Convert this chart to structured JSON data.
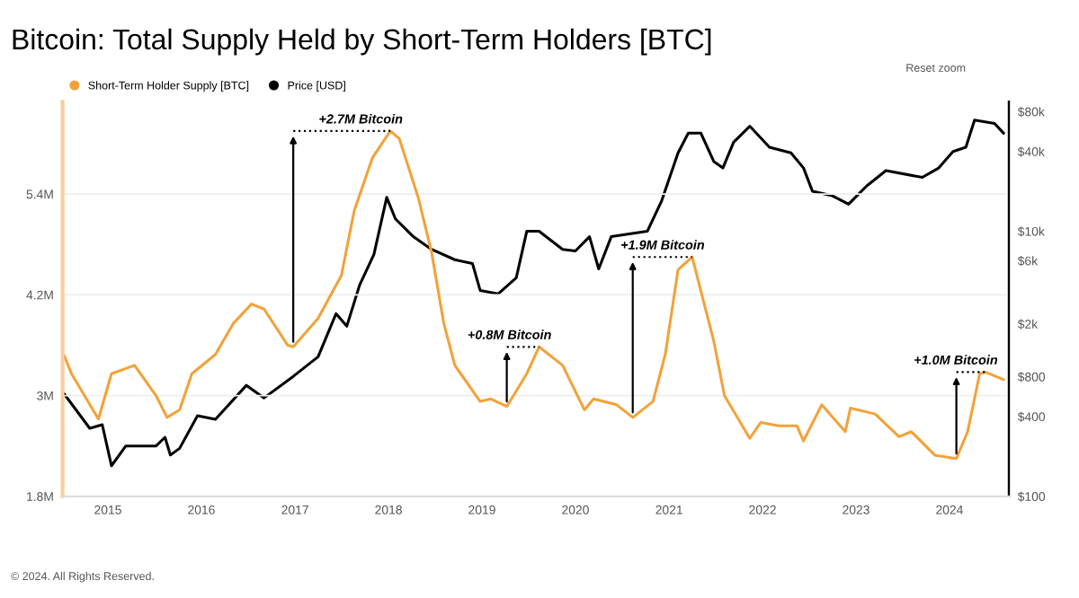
{
  "chart_data": {
    "type": "line",
    "title": "Bitcoin: Total Supply Held by Short-Term Holders [BTC]",
    "series": [
      {
        "name": "Short-Term Holder Supply [BTC]",
        "color": "#f2a23a",
        "axis": "y",
        "x": [
          "2014-07-15",
          "2014-08-12",
          "2014-11-25",
          "2015-01-15",
          "2015-04-15",
          "2015-07-08",
          "2015-08-20",
          "2015-10-08",
          "2015-11-25",
          "2016-02-25",
          "2016-05-05",
          "2016-07-15",
          "2016-09-02",
          "2016-12-03",
          "2016-12-25",
          "2017-04-01",
          "2017-07-01",
          "2017-08-20",
          "2017-10-30",
          "2018-01-08",
          "2018-02-12",
          "2018-04-28",
          "2018-06-18",
          "2018-08-05",
          "2018-09-17",
          "2018-12-25",
          "2019-02-05",
          "2019-04-08",
          "2019-06-25",
          "2019-08-12",
          "2019-11-12",
          "2020-02-05",
          "2020-03-12",
          "2020-06-10",
          "2020-08-12",
          "2020-10-30",
          "2020-12-17",
          "2021-02-05",
          "2021-04-01",
          "2021-06-25",
          "2021-08-05",
          "2021-11-12",
          "2021-12-25",
          "2022-03-05",
          "2022-05-15",
          "2022-06-10",
          "2022-08-20",
          "2022-11-20",
          "2022-12-10",
          "2023-03-17",
          "2023-06-18",
          "2023-08-05",
          "2023-11-05",
          "2024-01-28",
          "2024-03-12",
          "2024-04-28",
          "2024-05-20",
          "2024-07-30"
        ],
        "values": [
          3470000,
          3260000,
          2720000,
          3260000,
          3360000,
          3000000,
          2740000,
          2830000,
          3260000,
          3490000,
          3860000,
          4090000,
          4030000,
          3600000,
          3580000,
          3920000,
          4430000,
          5200000,
          5830000,
          6150000,
          6060000,
          5350000,
          4710000,
          3860000,
          3360000,
          2930000,
          2960000,
          2870000,
          3260000,
          3580000,
          3360000,
          2830000,
          2960000,
          2890000,
          2740000,
          2930000,
          3490000,
          4500000,
          4650000,
          3640000,
          3000000,
          2490000,
          2680000,
          2640000,
          2640000,
          2460000,
          2890000,
          2570000,
          2850000,
          2780000,
          2510000,
          2570000,
          2290000,
          2250000,
          2570000,
          3260000,
          3280000,
          3190000
        ]
      },
      {
        "name": "Price [USD]",
        "color": "#000000",
        "axis": "y2",
        "x": [
          "2014-07-15",
          "2014-10-22",
          "2014-12-10",
          "2015-01-15",
          "2015-03-12",
          "2015-07-08",
          "2015-08-12",
          "2015-09-02",
          "2015-10-08",
          "2015-12-17",
          "2016-02-25",
          "2016-06-25",
          "2016-09-02",
          "2016-12-25",
          "2017-04-01",
          "2017-06-10",
          "2017-07-22",
          "2017-09-10",
          "2017-11-05",
          "2017-12-25",
          "2018-01-28",
          "2018-04-08",
          "2018-06-18",
          "2018-09-17",
          "2018-11-25",
          "2018-12-25",
          "2019-03-05",
          "2019-05-15",
          "2019-06-25",
          "2019-08-12",
          "2019-11-12",
          "2020-01-01",
          "2020-02-25",
          "2020-04-01",
          "2020-05-20",
          "2020-10-08",
          "2020-12-03",
          "2021-02-05",
          "2021-03-17",
          "2021-05-05",
          "2021-06-25",
          "2021-07-30",
          "2021-09-10",
          "2021-11-12",
          "2022-01-28",
          "2022-04-22",
          "2022-06-10",
          "2022-07-15",
          "2022-10-01",
          "2022-12-03",
          "2023-02-12",
          "2023-04-28",
          "2023-09-17",
          "2023-11-20",
          "2024-01-15",
          "2024-03-05",
          "2024-04-08",
          "2024-06-25",
          "2024-07-30"
        ],
        "values": [
          590,
          326,
          347,
          170,
          240,
          240,
          279,
          205,
          230,
          406,
          381,
          688,
          553,
          804,
          1130,
          2390,
          1920,
          3920,
          6690,
          18000,
          12400,
          9100,
          7300,
          6100,
          5700,
          3580,
          3370,
          4460,
          10000,
          10000,
          7300,
          7100,
          9100,
          5200,
          9100,
          10000,
          17000,
          39000,
          55000,
          55000,
          33500,
          30000,
          47000,
          62000,
          43000,
          39000,
          30000,
          20000,
          18500,
          16000,
          22000,
          28700,
          25500,
          30000,
          40000,
          43000,
          69000,
          65000,
          55000
        ]
      }
    ],
    "xlim": [
      "2014-07-08",
      "2024-08-20"
    ],
    "xticks": [
      {
        "value": "2015-01-01",
        "label": "2015"
      },
      {
        "value": "2016-01-01",
        "label": "2016"
      },
      {
        "value": "2017-01-01",
        "label": "2017"
      },
      {
        "value": "2018-01-01",
        "label": "2018"
      },
      {
        "value": "2019-01-01",
        "label": "2019"
      },
      {
        "value": "2020-01-01",
        "label": "2020"
      },
      {
        "value": "2021-01-01",
        "label": "2021"
      },
      {
        "value": "2022-01-01",
        "label": "2022"
      },
      {
        "value": "2023-01-01",
        "label": "2023"
      },
      {
        "value": "2024-01-01",
        "label": "2024"
      }
    ],
    "ylim": [
      1800000,
      6500000
    ],
    "yticks": [
      {
        "value": 1800000,
        "label": "1.8M"
      },
      {
        "value": 3000000,
        "label": "3M"
      },
      {
        "value": 4200000,
        "label": "4.2M"
      },
      {
        "value": 5400000,
        "label": "5.4M"
      }
    ],
    "y2lim": [
      100,
      95000
    ],
    "y2ticks": [
      {
        "value": 100,
        "label": "$100"
      },
      {
        "value": 400,
        "label": "$400"
      },
      {
        "value": 800,
        "label": "$800"
      },
      {
        "value": 2000,
        "label": "$2k"
      },
      {
        "value": 6000,
        "label": "$6k"
      },
      {
        "value": 10000,
        "label": "$10k"
      },
      {
        "value": 40000,
        "label": "$40k"
      },
      {
        "value": 80000,
        "label": "$80k"
      }
    ],
    "log": "y2",
    "grid": "y",
    "legend": "top left",
    "annotations": [
      {
        "text": "+2.7M Bitcoin",
        "x": "2018-01-08",
        "y": 6150000
      },
      {
        "text": "+0.8M Bitcoin",
        "x": "2019-08-12",
        "y": 3580000
      },
      {
        "text": "+1.9M Bitcoin",
        "x": "2021-04-01",
        "y": 4650000
      },
      {
        "text": "+1.0M Bitcoin",
        "x": "2024-05-20",
        "y": 3280000
      },
      "Reset zoom",
      "© 2024. All Rights Reserved."
    ]
  }
}
